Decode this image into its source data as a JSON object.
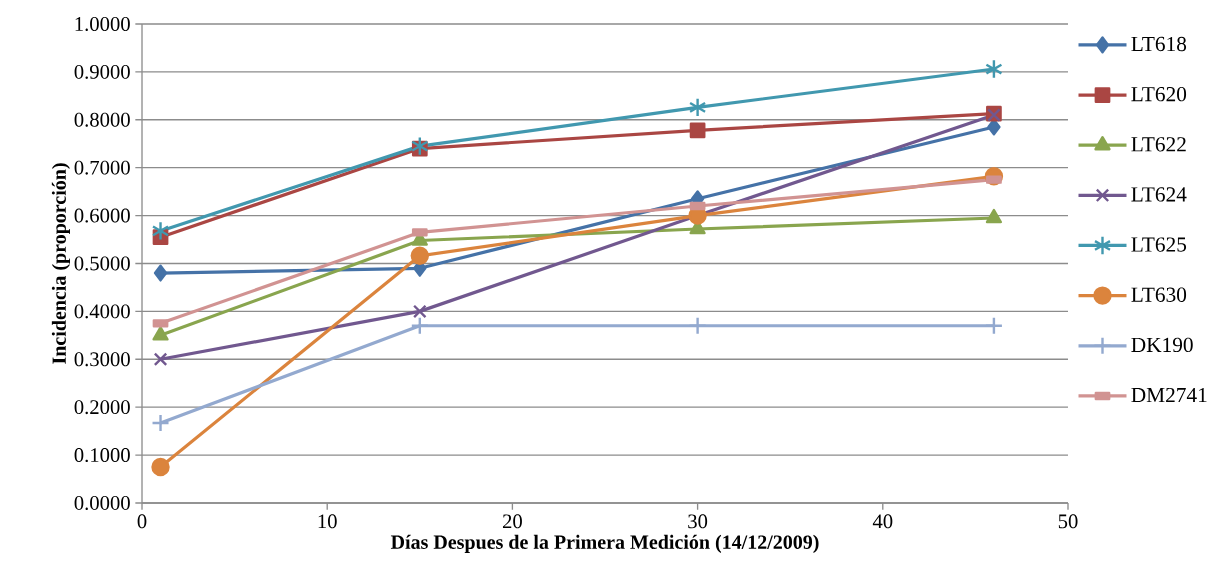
{
  "chart_data": {
    "type": "line",
    "xlabel": "Días Despues de la Primera Medición (14/12/2009)",
    "ylabel": "Incidencia (proporción)",
    "x": [
      1,
      15,
      30,
      46
    ],
    "xlim": [
      0,
      50
    ],
    "xticks": [
      0,
      10,
      20,
      30,
      40,
      50
    ],
    "ylim": [
      0,
      1
    ],
    "yticks": [
      {
        "value": 0,
        "label": "0.0000"
      },
      {
        "value": 0.1,
        "label": "0.1000"
      },
      {
        "value": 0.2,
        "label": "0.2000"
      },
      {
        "value": 0.3,
        "label": "0.3000"
      },
      {
        "value": 0.4,
        "label": "0.4000"
      },
      {
        "value": 0.5,
        "label": "0.5000"
      },
      {
        "value": 0.6,
        "label": "0.6000"
      },
      {
        "value": 0.7,
        "label": "0.7000"
      },
      {
        "value": 0.8,
        "label": "0.8000"
      },
      {
        "value": 0.9,
        "label": "0.9000"
      },
      {
        "value": 1,
        "label": "1.0000"
      }
    ],
    "grid": "y",
    "legend": "right",
    "line_style": "solid",
    "series": [
      {
        "name": "LT618",
        "color": "#4572a7",
        "marker": "diamond",
        "values": [
          0.48,
          0.49,
          0.635,
          0.785
        ]
      },
      {
        "name": "LT620",
        "color": "#aa4643",
        "marker": "square",
        "values": [
          0.555,
          0.74,
          0.778,
          0.813
        ]
      },
      {
        "name": "LT622",
        "color": "#89a54e",
        "marker": "triangle",
        "values": [
          0.35,
          0.548,
          0.572,
          0.595
        ]
      },
      {
        "name": "LT624",
        "color": "#71588f",
        "marker": "x",
        "values": [
          0.3,
          0.4,
          0.6,
          0.81
        ]
      },
      {
        "name": "LT625",
        "color": "#4198af",
        "marker": "cross",
        "values": [
          0.568,
          0.745,
          0.826,
          0.906
        ]
      },
      {
        "name": "LT630",
        "color": "#db843d",
        "marker": "circle",
        "values": [
          0.075,
          0.516,
          0.6,
          0.682
        ]
      },
      {
        "name": "DK190",
        "color": "#93a9cf",
        "marker": "plus",
        "values": [
          0.167,
          0.37,
          0.37,
          0.37
        ]
      },
      {
        "name": "DM2741",
        "color": "#d19392",
        "marker": "square",
        "values": [
          0.375,
          0.565,
          0.62,
          0.675
        ]
      }
    ]
  }
}
